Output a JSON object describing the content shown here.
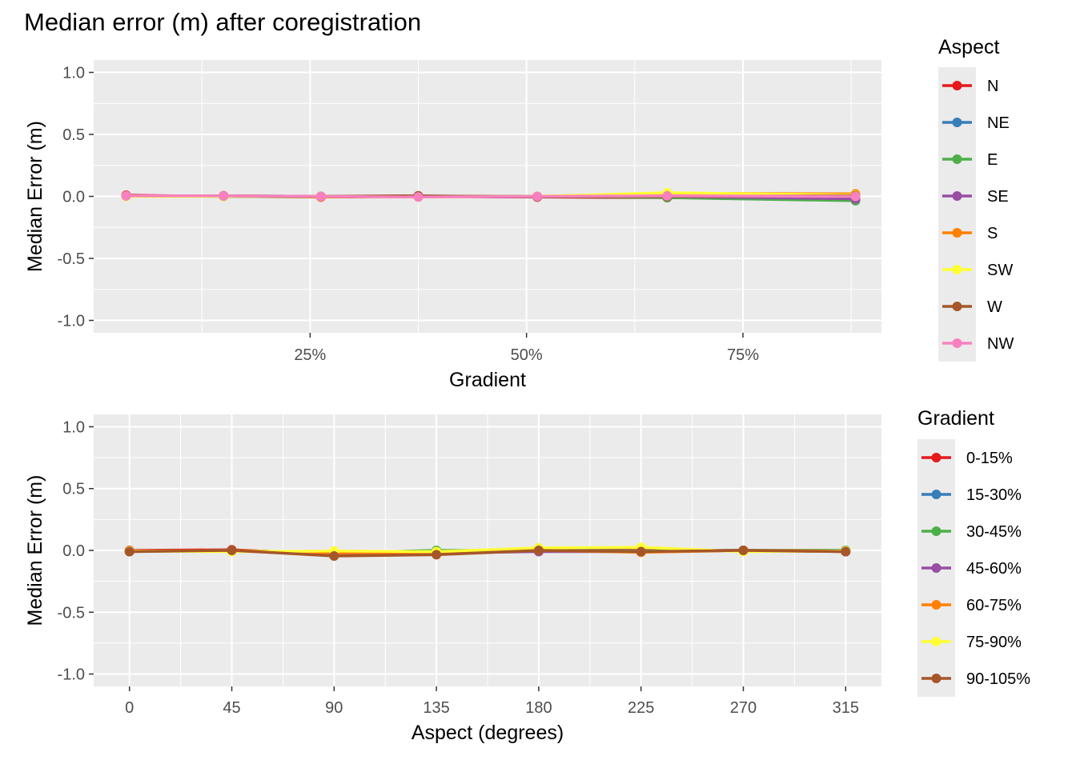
{
  "title": "Median error (m) after coregistration",
  "chart_data": [
    {
      "type": "line",
      "xlabel": "Gradient",
      "ylabel": "Median Error (m)",
      "x_tick_labels": [
        "25%",
        "50%",
        "75%"
      ],
      "x_ticks": [
        25,
        50,
        75
      ],
      "xlim": [
        0,
        91
      ],
      "y_tick_labels": [
        "1.0",
        "0.5",
        "0.0",
        "-0.5",
        "-1.0"
      ],
      "y_ticks": [
        1.0,
        0.5,
        0.0,
        -0.5,
        -1.0
      ],
      "ylim": [
        -1.1,
        1.1
      ],
      "grid": true,
      "legend_position": "right",
      "legend_title": "Aspect",
      "x": [
        3.75,
        15.0,
        26.25,
        37.5,
        51.25,
        66.25,
        88.0
      ],
      "series": [
        {
          "name": "N",
          "color": "#E41A1C",
          "values": [
            0.01,
            0.0,
            -0.005,
            0.0,
            -0.005,
            -0.01,
            -0.02
          ]
        },
        {
          "name": "NE",
          "color": "#377EB8",
          "values": [
            0.005,
            0.0,
            -0.005,
            0.0,
            0.0,
            -0.005,
            -0.03
          ]
        },
        {
          "name": "E",
          "color": "#4DAF4A",
          "values": [
            0.005,
            0.005,
            0.0,
            0.0,
            0.0,
            -0.01,
            -0.035
          ]
        },
        {
          "name": "SE",
          "color": "#984EA3",
          "values": [
            0.005,
            0.005,
            -0.005,
            0.0,
            -0.005,
            0.0,
            -0.02
          ]
        },
        {
          "name": "S",
          "color": "#FF7F00",
          "values": [
            0.005,
            0.005,
            -0.005,
            0.0,
            0.0,
            0.025,
            0.02
          ]
        },
        {
          "name": "SW",
          "color": "#FFFF33",
          "values": [
            0.0,
            0.0,
            0.0,
            -0.005,
            0.0,
            0.03,
            0.01
          ]
        },
        {
          "name": "W",
          "color": "#A65628",
          "values": [
            0.005,
            0.005,
            0.0,
            0.005,
            -0.005,
            0.0,
            0.005
          ]
        },
        {
          "name": "NW",
          "color": "#F781BF",
          "values": [
            0.005,
            0.005,
            0.0,
            -0.005,
            0.0,
            0.005,
            0.0
          ]
        }
      ]
    },
    {
      "type": "line",
      "xlabel": "Aspect (degrees)",
      "ylabel": "Median Error (m)",
      "x_tick_labels": [
        "0",
        "45",
        "90",
        "135",
        "180",
        "225",
        "270",
        "315"
      ],
      "x_ticks": [
        0,
        45,
        90,
        135,
        180,
        225,
        270,
        315
      ],
      "xlim": [
        -15.75,
        330.75
      ],
      "y_tick_labels": [
        "1.0",
        "0.5",
        "0.0",
        "-0.5",
        "-1.0"
      ],
      "y_ticks": [
        1.0,
        0.5,
        0.0,
        -0.5,
        -1.0
      ],
      "ylim": [
        -1.1,
        1.1
      ],
      "grid": true,
      "legend_position": "right",
      "legend_title": "Gradient",
      "x": [
        0,
        45,
        90,
        135,
        180,
        225,
        270,
        315
      ],
      "series": [
        {
          "name": "0-15%",
          "color": "#E41A1C",
          "values": [
            0.0,
            0.005,
            -0.03,
            -0.02,
            0.005,
            0.0,
            0.0,
            -0.01
          ]
        },
        {
          "name": "15-30%",
          "color": "#377EB8",
          "values": [
            -0.005,
            0.0,
            -0.025,
            -0.02,
            0.0,
            -0.005,
            0.0,
            0.0
          ]
        },
        {
          "name": "30-45%",
          "color": "#4DAF4A",
          "values": [
            -0.01,
            0.0,
            -0.02,
            0.0,
            0.0,
            -0.005,
            0.0,
            0.0
          ]
        },
        {
          "name": "45-60%",
          "color": "#984EA3",
          "values": [
            -0.005,
            0.0,
            -0.03,
            -0.02,
            -0.01,
            -0.01,
            0.0,
            -0.01
          ]
        },
        {
          "name": "60-75%",
          "color": "#FF7F00",
          "values": [
            -0.005,
            0.0,
            -0.02,
            -0.015,
            0.0,
            -0.015,
            0.0,
            -0.005
          ]
        },
        {
          "name": "75-90%",
          "color": "#FFFF33",
          "values": [
            -0.005,
            -0.01,
            -0.005,
            -0.01,
            0.02,
            0.025,
            -0.01,
            -0.005
          ]
        },
        {
          "name": "90-105%",
          "color": "#A65628",
          "values": [
            -0.01,
            0.0,
            -0.045,
            -0.035,
            0.0,
            -0.01,
            0.0,
            -0.01
          ]
        }
      ]
    }
  ]
}
